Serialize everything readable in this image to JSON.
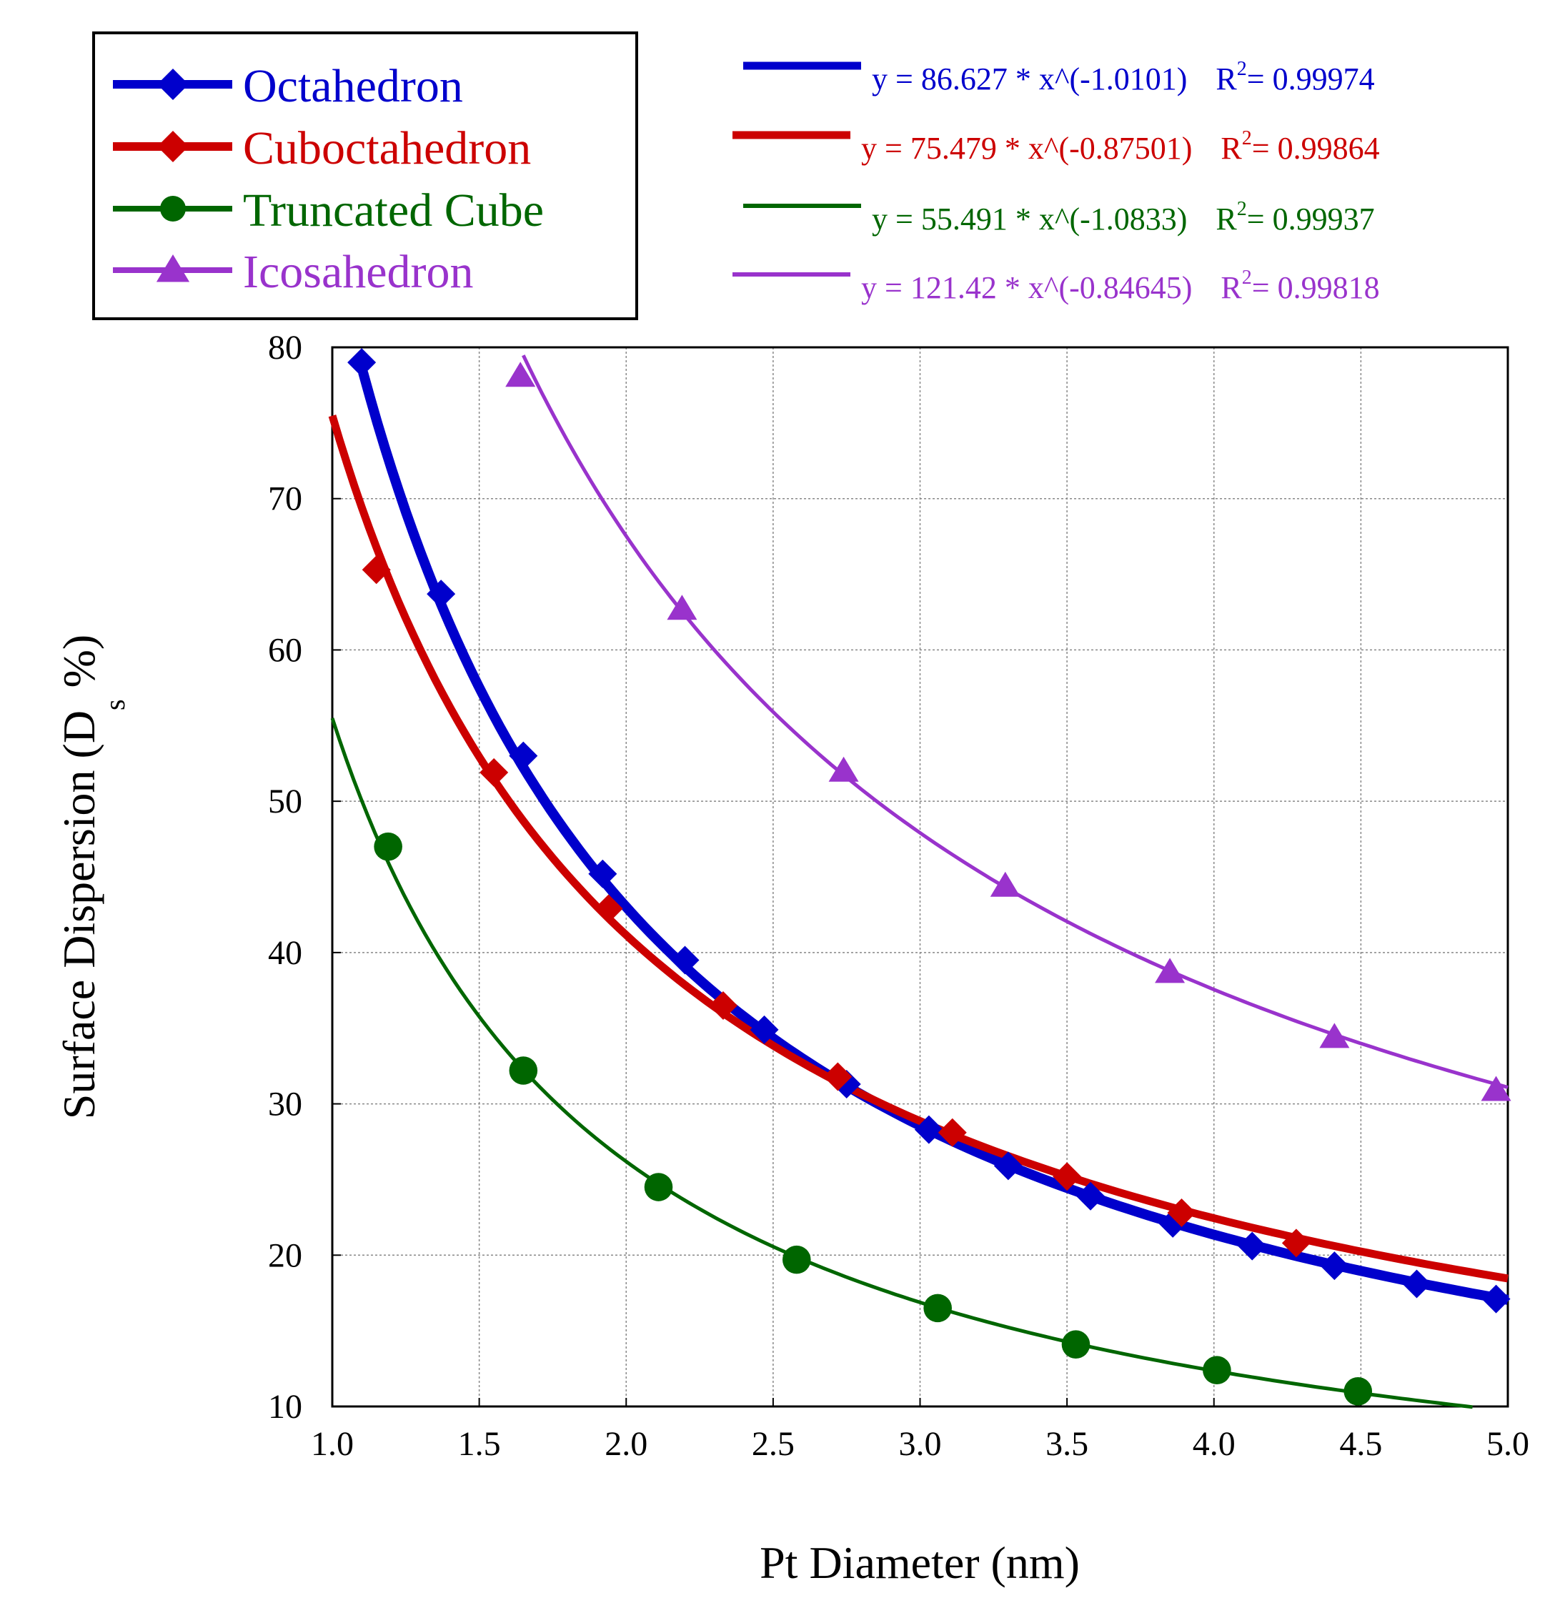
{
  "chart_data": {
    "type": "scatter",
    "xlabel": "Pt Diameter (nm)",
    "ylabel_main": "Surface Dispersion (D",
    "ylabel_sub": "s",
    "ylabel_end": " %)",
    "xlim": [
      1.0,
      5.0
    ],
    "ylim": [
      10,
      80
    ],
    "x_ticks": [
      "1.0",
      "1.5",
      "2.0",
      "2.5",
      "3.0",
      "3.5",
      "4.0",
      "4.5",
      "5.0"
    ],
    "y_ticks": [
      "10",
      "20",
      "30",
      "40",
      "50",
      "60",
      "70",
      "80"
    ],
    "grid": true,
    "legend_position": "top-left",
    "series": [
      {
        "name": "Octahedron",
        "color": "#0000cc",
        "marker": "diamond",
        "fit": {
          "a": 86.627,
          "b": -1.0101,
          "x_range": [
            1.08,
            5.0
          ]
        },
        "fit_label": "y = 86.627 * x^(-1.0101)",
        "r2_prefix": "R",
        "r2_sup": "2",
        "r2_value": "= 0.99974",
        "x": [
          1.1,
          1.37,
          1.65,
          1.92,
          2.2,
          2.47,
          2.75,
          3.03,
          3.3,
          3.58,
          3.86,
          4.13,
          4.41,
          4.69,
          4.96
        ],
        "y": [
          79.0,
          63.7,
          53.0,
          45.2,
          39.5,
          34.9,
          31.3,
          28.3,
          25.9,
          23.9,
          22.1,
          20.6,
          19.3,
          18.1,
          17.1
        ]
      },
      {
        "name": "Cuboctahedron",
        "color": "#cc0000",
        "marker": "diamond",
        "fit": {
          "a": 75.479,
          "b": -0.87501,
          "x_range": [
            1.0,
            5.0
          ]
        },
        "fit_label": "y = 75.479 * x^(-0.87501)",
        "r2_prefix": "R",
        "r2_sup": "2",
        "r2_value": "= 0.99864",
        "x": [
          1.15,
          1.55,
          1.94,
          2.33,
          2.72,
          3.11,
          3.5,
          3.89,
          4.28
        ],
        "y": [
          65.3,
          51.9,
          42.9,
          36.5,
          31.8,
          28.1,
          25.2,
          22.8,
          20.8
        ]
      },
      {
        "name": "Truncated Cube",
        "color": "#006600",
        "marker": "circle",
        "fit": {
          "a": 55.491,
          "b": -1.0833,
          "x_range": [
            1.0,
            4.88
          ]
        },
        "fit_label": "y = 55.491 * x^(-1.0833)",
        "r2_prefix": "R",
        "r2_sup": "2",
        "r2_value": "= 0.99937",
        "x": [
          1.19,
          1.65,
          2.11,
          2.58,
          3.06,
          3.53,
          4.01,
          4.49
        ],
        "y": [
          47.0,
          32.2,
          24.5,
          19.7,
          16.5,
          14.1,
          12.4,
          11.0
        ]
      },
      {
        "name": "Icosahedron",
        "color": "#9933cc",
        "marker": "triangle",
        "fit": {
          "a": 121.42,
          "b": -0.84645,
          "x_range": [
            1.65,
            5.0
          ]
        },
        "fit_label": "y = 121.42 * x^(-0.84645)",
        "r2_prefix": "R",
        "r2_sup": "2",
        "r2_value": "= 0.99818",
        "x": [
          1.64,
          2.19,
          2.74,
          3.29,
          3.85,
          4.41,
          4.96
        ],
        "y": [
          78.1,
          62.7,
          52.0,
          44.4,
          38.7,
          34.4,
          30.9
        ]
      }
    ]
  }
}
